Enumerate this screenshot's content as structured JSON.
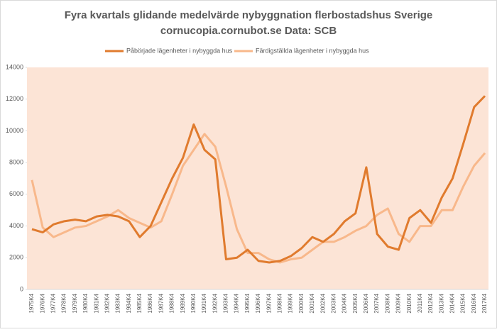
{
  "chart_data": {
    "type": "line",
    "title": "Fyra kvartals glidande medelvärde nybyggnation flerbostadshus Sverige",
    "subtitle": "cornucopia.cornubot.se Data: SCB",
    "categories": [
      "1975K4",
      "1976K4",
      "1977K4",
      "1978K4",
      "1979K4",
      "1980K4",
      "1981K4",
      "1982K4",
      "1983K4",
      "1984K4",
      "1985K4",
      "1986K4",
      "1987K4",
      "1988K4",
      "1989K4",
      "1990K4",
      "1991K4",
      "1992K4",
      "1993K4",
      "1994K4",
      "1995K4",
      "1996K4",
      "1997K4",
      "1998K4",
      "1999K4",
      "2000K4",
      "2001K4",
      "2002K4",
      "2003K4",
      "2004K4",
      "2005K4",
      "2006K4",
      "2007K4",
      "2008K4",
      "2009K4",
      "2010K4",
      "2011K4",
      "2012K4",
      "2013K4",
      "2014K4",
      "2015K4",
      "2016K4",
      "2017K4"
    ],
    "series": [
      {
        "name": "Påbörjade lägenheter i nybyggda hus",
        "color": "#e07b2e",
        "values": [
          3800,
          3600,
          4100,
          4300,
          4400,
          4300,
          4600,
          4700,
          4600,
          4300,
          3300,
          4000,
          5500,
          7000,
          8300,
          10400,
          8800,
          8200,
          1900,
          2000,
          2500,
          1800,
          1700,
          1800,
          2100,
          2600,
          3300,
          3000,
          3500,
          4300,
          4800,
          7700,
          3500,
          2700,
          2500,
          4500,
          5000,
          4200,
          5800,
          7000,
          9200,
          11500,
          12200
        ]
      },
      {
        "name": "Färdigställda lägenheter i nybyggda hus",
        "color": "#f8b88b",
        "values": [
          6900,
          3900,
          3300,
          3600,
          3900,
          4000,
          4300,
          4600,
          5000,
          4500,
          4200,
          3900,
          4300,
          6000,
          7800,
          8800,
          9800,
          9000,
          6500,
          3800,
          2300,
          2300,
          1900,
          1700,
          1900,
          2000,
          2500,
          3000,
          3000,
          3300,
          3700,
          4000,
          4700,
          5100,
          3500,
          3000,
          4000,
          4000,
          5000,
          5000,
          6500,
          7800,
          8600
        ]
      }
    ],
    "ylim": [
      0,
      14000
    ],
    "yticks": [
      0,
      2000,
      4000,
      6000,
      8000,
      10000,
      12000,
      14000
    ],
    "legend": "top",
    "plot_background": "#fce4d6"
  }
}
